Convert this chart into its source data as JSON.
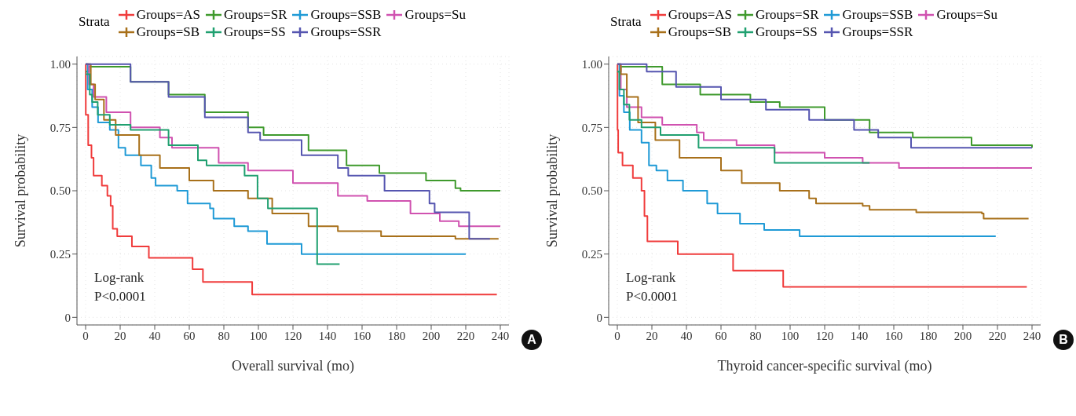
{
  "chart_data": [
    {
      "type": "step",
      "legend_title": "Strata",
      "legend": "top",
      "xlabel": "Overall survival (mo)",
      "ylabel": "Survival probability",
      "xlim": [
        -5,
        245
      ],
      "ylim": [
        -0.03,
        1.03
      ],
      "xticks": [
        0,
        20,
        40,
        60,
        80,
        100,
        120,
        140,
        160,
        180,
        200,
        220,
        240
      ],
      "yticks": [
        0,
        {
          "value": 0.25,
          "label": "0.25"
        },
        {
          "value": 0.5,
          "label": "0.50"
        },
        {
          "value": 0.75,
          "label": "0.75"
        },
        {
          "value": 1,
          "label": "1.00"
        }
      ],
      "grid": true,
      "annotations": [
        "Log-rank",
        "P<0.0001",
        "A"
      ],
      "series": [
        {
          "name": "Groups=AS",
          "color": "#f03c3c",
          "x": [
            0,
            0.1,
            1.5,
            3.4,
            4.6,
            9.4,
            12.6,
            14.5,
            15.7,
            18.3,
            26.8,
            36.6,
            61.9,
            67.9,
            96.4,
            238
          ],
          "values": [
            1,
            0.8,
            0.68,
            0.63,
            0.56,
            0.52,
            0.48,
            0.44,
            0.35,
            0.32,
            0.28,
            0.235,
            0.19,
            0.14,
            0.09,
            0.09
          ]
        },
        {
          "name": "Groups=SR",
          "color": "#3f9a2d",
          "x": [
            0,
            2,
            26,
            48,
            69,
            94,
            103,
            129,
            151,
            170,
            197,
            214,
            217,
            240
          ],
          "values": [
            0.97,
            0.99,
            0.93,
            0.88,
            0.81,
            0.75,
            0.72,
            0.66,
            0.6,
            0.57,
            0.54,
            0.51,
            0.5,
            0.5
          ]
        },
        {
          "name": "Groups=SSB",
          "color": "#1f9ad6",
          "x": [
            0,
            1.2,
            3.8,
            7.2,
            14,
            19,
            23,
            32,
            38,
            40.5,
            53,
            59,
            72,
            74,
            86,
            94,
            105,
            125,
            220
          ],
          "values": [
            1,
            0.9,
            0.83,
            0.77,
            0.74,
            0.67,
            0.64,
            0.6,
            0.55,
            0.52,
            0.5,
            0.45,
            0.43,
            0.39,
            0.36,
            0.34,
            0.29,
            0.25,
            0.25
          ]
        },
        {
          "name": "Groups=Su",
          "color": "#d052b0",
          "x": [
            0,
            2,
            4.6,
            12,
            26,
            43,
            50,
            77,
            94,
            120,
            146,
            163,
            188,
            205,
            216,
            240
          ],
          "values": [
            1,
            0.92,
            0.87,
            0.81,
            0.75,
            0.71,
            0.67,
            0.61,
            0.58,
            0.53,
            0.48,
            0.46,
            0.41,
            0.38,
            0.36,
            0.36
          ]
        },
        {
          "name": "Groups=SB",
          "color": "#a8701a",
          "x": [
            0,
            3,
            5.5,
            10.6,
            17.4,
            31,
            43,
            60,
            74,
            94,
            108,
            129,
            146,
            171,
            211,
            214,
            239
          ],
          "values": [
            1,
            0.92,
            0.86,
            0.78,
            0.72,
            0.64,
            0.59,
            0.54,
            0.5,
            0.47,
            0.41,
            0.36,
            0.34,
            0.32,
            0.32,
            0.31,
            0.31
          ]
        },
        {
          "name": "Groups=SS",
          "color": "#20a070",
          "x": [
            0,
            2.4,
            3.8,
            7,
            14,
            26,
            48,
            65,
            70,
            92,
            99.5,
            105.5,
            134,
            147
          ],
          "values": [
            0.96,
            0.88,
            0.85,
            0.8,
            0.76,
            0.74,
            0.68,
            0.62,
            0.6,
            0.56,
            0.47,
            0.43,
            0.21,
            0.21
          ]
        },
        {
          "name": "Groups=SSR",
          "color": "#5555b0",
          "x": [
            0,
            26,
            48,
            69,
            94,
            101,
            125,
            146,
            152,
            171,
            173,
            199,
            202,
            222,
            234
          ],
          "values": [
            1,
            0.93,
            0.87,
            0.79,
            0.73,
            0.7,
            0.64,
            0.59,
            0.56,
            0.56,
            0.5,
            0.45,
            0.415,
            0.31,
            0.31
          ]
        }
      ]
    },
    {
      "type": "step",
      "legend_title": "Strata",
      "legend": "top",
      "xlabel": "Thyroid cancer-specific survival (mo)",
      "ylabel": "Survival probability",
      "xlim": [
        -5,
        245
      ],
      "ylim": [
        -0.03,
        1.03
      ],
      "xticks": [
        0,
        20,
        40,
        60,
        80,
        100,
        120,
        140,
        160,
        180,
        200,
        220,
        240
      ],
      "yticks": [
        0,
        {
          "value": 0.25,
          "label": "0.25"
        },
        {
          "value": 0.5,
          "label": "0.50"
        },
        {
          "value": 0.75,
          "label": "0.75"
        },
        {
          "value": 1,
          "label": "1.00"
        }
      ],
      "grid": true,
      "annotations": [
        "Log-rank",
        "P<0.0001",
        "B"
      ],
      "series": [
        {
          "name": "Groups=AS",
          "color": "#f03c3c",
          "x": [
            0,
            0.1,
            0.5,
            3,
            9,
            14,
            15.7,
            17.4,
            35,
            67,
            96,
            237
          ],
          "values": [
            1,
            0.74,
            0.65,
            0.6,
            0.55,
            0.5,
            0.4,
            0.3,
            0.25,
            0.185,
            0.12,
            0.12
          ]
        },
        {
          "name": "Groups=SR",
          "color": "#3f9a2d",
          "x": [
            0,
            2,
            26,
            48,
            77,
            94,
            120,
            146,
            171,
            205,
            240
          ],
          "values": [
            0.97,
            0.99,
            0.92,
            0.88,
            0.85,
            0.83,
            0.78,
            0.73,
            0.71,
            0.68,
            0.67
          ]
        },
        {
          "name": "Groups=SSB",
          "color": "#1f9ad6",
          "x": [
            0,
            1.2,
            3.8,
            7.2,
            14,
            18.3,
            22.6,
            29,
            38,
            52,
            58,
            71,
            85,
            105.5,
            219
          ],
          "values": [
            1,
            0.875,
            0.81,
            0.74,
            0.69,
            0.6,
            0.58,
            0.54,
            0.5,
            0.45,
            0.41,
            0.37,
            0.345,
            0.32,
            0.32
          ]
        },
        {
          "name": "Groups=Su",
          "color": "#d052b0",
          "x": [
            0,
            2,
            5.5,
            14,
            26,
            46,
            50,
            69,
            91,
            120,
            142,
            163,
            240
          ],
          "values": [
            1,
            0.9,
            0.83,
            0.79,
            0.76,
            0.73,
            0.7,
            0.68,
            0.65,
            0.63,
            0.61,
            0.59,
            0.59
          ]
        },
        {
          "name": "Groups=SB",
          "color": "#a8701a",
          "x": [
            0,
            2,
            5.5,
            12,
            22,
            36,
            60,
            72,
            94,
            111,
            115,
            142,
            146,
            173,
            211,
            212,
            238
          ],
          "values": [
            1,
            0.96,
            0.87,
            0.77,
            0.7,
            0.63,
            0.58,
            0.53,
            0.5,
            0.47,
            0.45,
            0.44,
            0.425,
            0.415,
            0.41,
            0.39,
            0.39
          ]
        },
        {
          "name": "Groups=SS",
          "color": "#20a070",
          "x": [
            0,
            1.2,
            3.8,
            7,
            14,
            25,
            47,
            91,
            146
          ],
          "values": [
            0.97,
            0.9,
            0.84,
            0.78,
            0.75,
            0.72,
            0.67,
            0.61,
            0.61
          ]
        },
        {
          "name": "Groups=SSR",
          "color": "#5555b0",
          "x": [
            0,
            17,
            34,
            60,
            86,
            111,
            137,
            151,
            170,
            240
          ],
          "values": [
            1,
            0.97,
            0.91,
            0.86,
            0.82,
            0.78,
            0.74,
            0.71,
            0.67,
            0.67
          ]
        }
      ]
    }
  ]
}
